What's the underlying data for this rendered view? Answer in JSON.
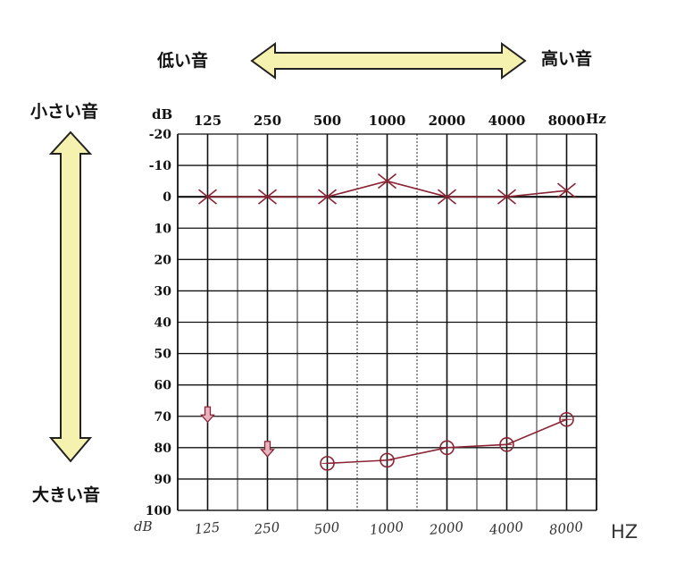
{
  "labels": {
    "low_sound": "低い音",
    "high_sound": "高い音",
    "quiet_sound": "小さい音",
    "loud_sound": "大きい音",
    "db_unit_top": "dB",
    "hz_unit_top": "Hz",
    "db_unit_hand": "dB",
    "hz_unit_hand": "HZ"
  },
  "colors": {
    "grid": "#111111",
    "ink": "#8a2434",
    "arrow_fill": "#f5f2b0",
    "arrow_stroke": "#222222",
    "handwriting": "#333333"
  },
  "chart_data": {
    "type": "line",
    "title": "",
    "xlabel": "Hz",
    "ylabel": "dB",
    "x_categories": [
      "125",
      "250",
      "500",
      "1000",
      "2000",
      "4000",
      "8000"
    ],
    "x_handwritten": [
      "125",
      "250",
      "500",
      "1000",
      "2000",
      "4000",
      "8000"
    ],
    "y_ticks": [
      -20,
      -10,
      0,
      10,
      20,
      30,
      40,
      50,
      60,
      70,
      80,
      90,
      100
    ],
    "ylim": [
      -20,
      100
    ],
    "y_inverted": true,
    "grid": true,
    "series": [
      {
        "marker": "x",
        "values": [
          0,
          0,
          0,
          -5,
          0,
          0,
          -2
        ]
      },
      {
        "marker": "o",
        "values": [
          null,
          null,
          85,
          84,
          80,
          79,
          71
        ]
      },
      {
        "marker": "down-arrow",
        "values": [
          71,
          82,
          null,
          null,
          null,
          null,
          null
        ]
      }
    ]
  }
}
